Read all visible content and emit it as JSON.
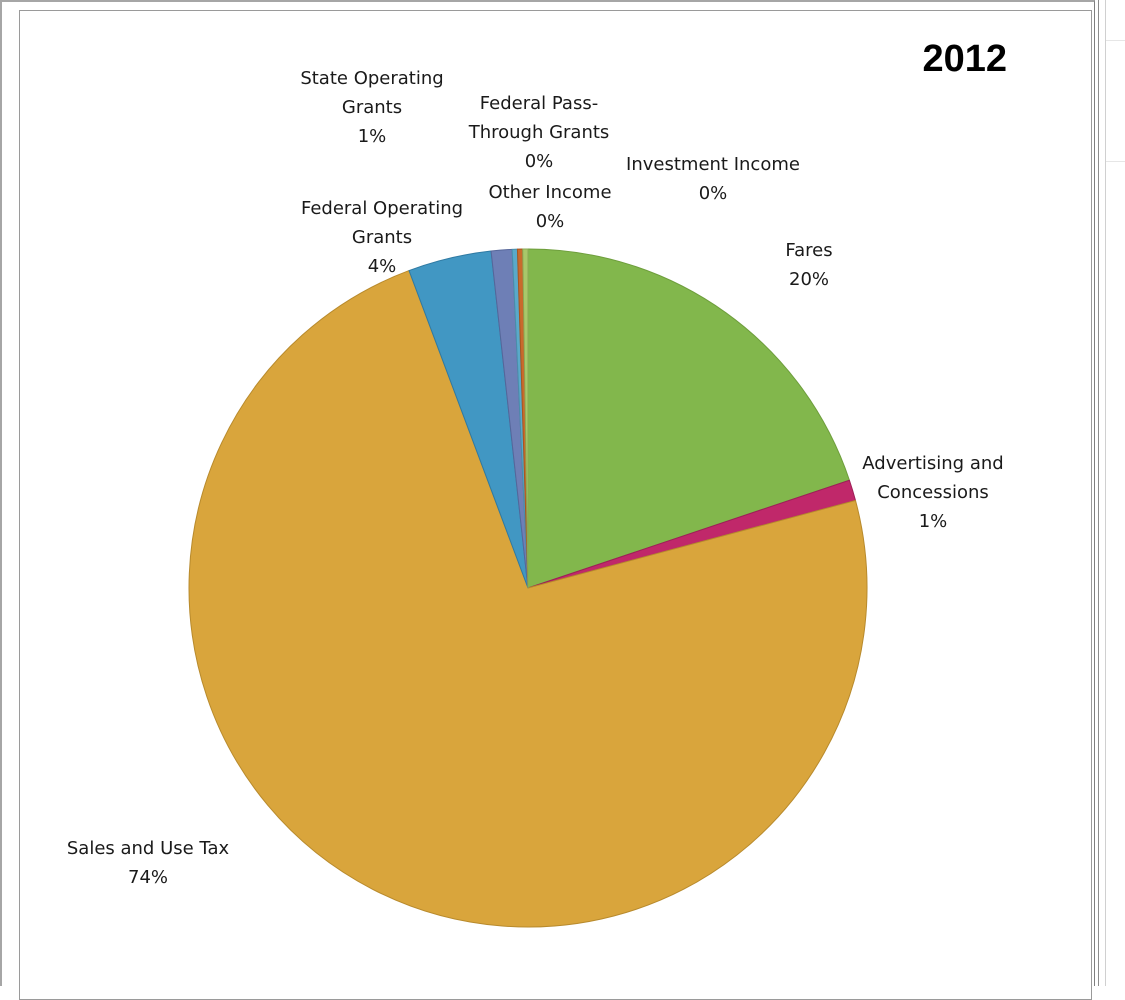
{
  "chart_data": {
    "type": "pie",
    "title": "2012",
    "slices": [
      {
        "name": "Fares",
        "value": 20,
        "label": "20%",
        "color": "#82b74c",
        "stroke": "#6e9e3c"
      },
      {
        "name": "Advertising and Concessions",
        "value": 1,
        "label": "1%",
        "color": "#c0286a",
        "stroke": "#9e1f57"
      },
      {
        "name": "Sales and Use Tax",
        "value": 74,
        "label": "74%",
        "color": "#d9a53c",
        "stroke": "#b88a2c"
      },
      {
        "name": "Federal Operating Grants",
        "value": 4,
        "label": "4%",
        "color": "#4197c3",
        "stroke": "#2f7aa3"
      },
      {
        "name": "State Operating Grants",
        "value": 1,
        "label": "1%",
        "color": "#6e7fb6",
        "stroke": "#56669a"
      },
      {
        "name": "Federal Pass-Through Grants",
        "value": 0,
        "label": "0%",
        "color": "#5aa9c9",
        "stroke": "#4a8fab"
      },
      {
        "name": "Other Income",
        "value": 0,
        "label": "0%",
        "color": "#c96a2c",
        "stroke": "#a85620"
      },
      {
        "name": "Investment Income",
        "value": 0,
        "label": "0%",
        "color": "#a8c86a",
        "stroke": "#8aa855"
      }
    ]
  }
}
